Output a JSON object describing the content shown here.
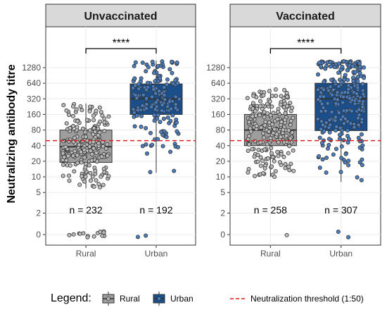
{
  "chart_data": {
    "type": "box",
    "y_label": "Neutralizing antibody titre",
    "y_scale": "log2 (0 shown separately)",
    "y_ticks": [
      "0",
      "2",
      "5",
      "10",
      "20",
      "40",
      "80",
      "160",
      "320",
      "640",
      "1280"
    ],
    "y_tick_values": [
      0,
      2,
      5,
      10,
      20,
      40,
      80,
      160,
      320,
      640,
      1280
    ],
    "categories": [
      "Rural",
      "Urban"
    ],
    "threshold": {
      "value": 50,
      "label": "Neutralization threshold (1:50)",
      "color": "#e41a1c"
    },
    "colors": {
      "Rural": "#9e9e9e",
      "Urban": "#1b4f8c"
    },
    "panels": [
      {
        "title": "Unvaccinated",
        "significance": "****",
        "groups": [
          {
            "name": "Rural",
            "n_label": "n = 232",
            "n": 232,
            "q1": 19,
            "median": 38,
            "q3": 80,
            "whisker_low": 6,
            "whisker_high": 260
          },
          {
            "name": "Urban",
            "n_label": "n = 192",
            "n": 192,
            "q1": 160,
            "median": 320,
            "q3": 620,
            "whisker_low": 12,
            "whisker_high": 1800
          }
        ]
      },
      {
        "title": "Vaccinated",
        "significance": "****",
        "groups": [
          {
            "name": "Rural",
            "n_label": "n = 258",
            "n": 258,
            "q1": 40,
            "median": 80,
            "q3": 160,
            "whisker_low": 10,
            "whisker_high": 500
          },
          {
            "name": "Urban",
            "n_label": "n = 307",
            "n": 307,
            "q1": 78,
            "median": 320,
            "q3": 640,
            "whisker_low": 8,
            "whisker_high": 1800
          }
        ]
      }
    ]
  },
  "legend": {
    "title": "Legend:",
    "items": [
      "Rural",
      "Urban"
    ],
    "threshold_label": "Neutralization threshold (1:50)"
  }
}
